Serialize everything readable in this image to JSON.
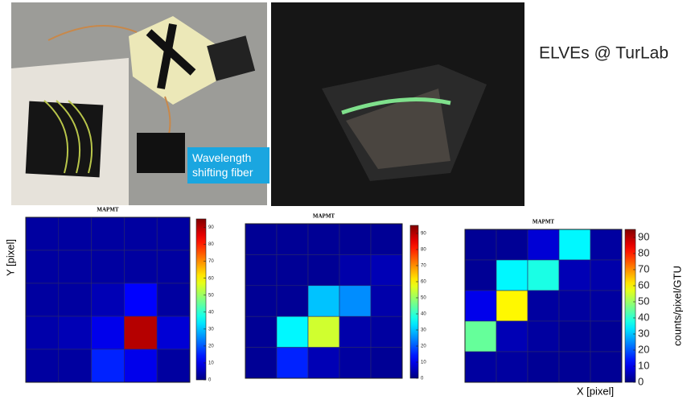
{
  "title": "ELVEs @ TurLab",
  "photo_label": "Wavelength shifting fiber",
  "chart_data": [
    {
      "type": "heatmap",
      "title": "MAPMT",
      "ylabel": "Y [pixel]",
      "z": [
        [
          3,
          3,
          3,
          3,
          3
        ],
        [
          3,
          3,
          3,
          3,
          3
        ],
        [
          3,
          3,
          5,
          12,
          3
        ],
        [
          4,
          5,
          10,
          90,
          8
        ],
        [
          3,
          3,
          15,
          10,
          3
        ]
      ],
      "clim": [
        0,
        95
      ],
      "cticks": [
        0,
        10,
        20,
        30,
        40,
        50,
        60,
        70,
        80,
        90
      ]
    },
    {
      "type": "heatmap",
      "title": "MAPMT",
      "z": [
        [
          2,
          2,
          2,
          2,
          2
        ],
        [
          2,
          2,
          2,
          4,
          5
        ],
        [
          2,
          2,
          30,
          25,
          4
        ],
        [
          2,
          35,
          55,
          4,
          3
        ],
        [
          2,
          15,
          5,
          3,
          2
        ]
      ],
      "clim": [
        0,
        95
      ],
      "cticks": [
        0,
        10,
        20,
        30,
        40,
        50,
        60,
        70,
        80,
        90
      ]
    },
    {
      "type": "heatmap",
      "title": "MAPMT",
      "xlabel": "X [pixel]",
      "clabel": "counts/pixel/GTU",
      "z": [
        [
          2,
          2,
          8,
          35,
          3
        ],
        [
          2,
          35,
          38,
          5,
          4
        ],
        [
          10,
          60,
          3,
          3,
          3
        ],
        [
          45,
          5,
          3,
          2,
          2
        ],
        [
          3,
          3,
          2,
          2,
          2
        ]
      ],
      "clim": [
        0,
        95
      ],
      "cticks": [
        0,
        10,
        20,
        30,
        40,
        50,
        60,
        70,
        80,
        90
      ]
    }
  ]
}
